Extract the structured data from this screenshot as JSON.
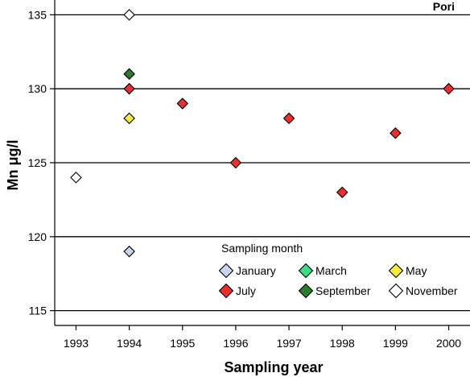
{
  "chart_data": {
    "type": "scatter",
    "panel_label": "Pori",
    "xlabel": "Sampling year",
    "ylabel": "Mn μg/l",
    "x_ticks": [
      1993,
      1994,
      1995,
      1996,
      1997,
      1998,
      1999,
      2000
    ],
    "y_ticks": [
      115,
      120,
      125,
      130,
      135
    ],
    "xlim": [
      1992.6,
      2000.4
    ],
    "ylim": [
      114,
      136
    ],
    "grid": "horizontal",
    "legend": {
      "title": "Sampling month",
      "placement": "bottom-right"
    },
    "series": [
      {
        "name": "January",
        "color": "#c9d6ea",
        "points": [
          {
            "x": 1994,
            "y": 119
          }
        ]
      },
      {
        "name": "March",
        "color": "#3ddc84",
        "points": []
      },
      {
        "name": "May",
        "color": "#f5ea3b",
        "points": [
          {
            "x": 1994,
            "y": 128
          }
        ]
      },
      {
        "name": "July",
        "color": "#ee2e2e",
        "points": [
          {
            "x": 1994,
            "y": 130
          },
          {
            "x": 1995,
            "y": 129
          },
          {
            "x": 1996,
            "y": 125
          },
          {
            "x": 1997,
            "y": 128
          },
          {
            "x": 1998,
            "y": 123
          },
          {
            "x": 1999,
            "y": 127
          },
          {
            "x": 2000,
            "y": 130
          }
        ]
      },
      {
        "name": "September",
        "color": "#2e7d2e",
        "points": [
          {
            "x": 1994,
            "y": 131
          }
        ]
      },
      {
        "name": "November",
        "color": "#ffffff",
        "points": [
          {
            "x": 1993,
            "y": 124
          },
          {
            "x": 1994,
            "y": 135
          }
        ]
      }
    ]
  }
}
